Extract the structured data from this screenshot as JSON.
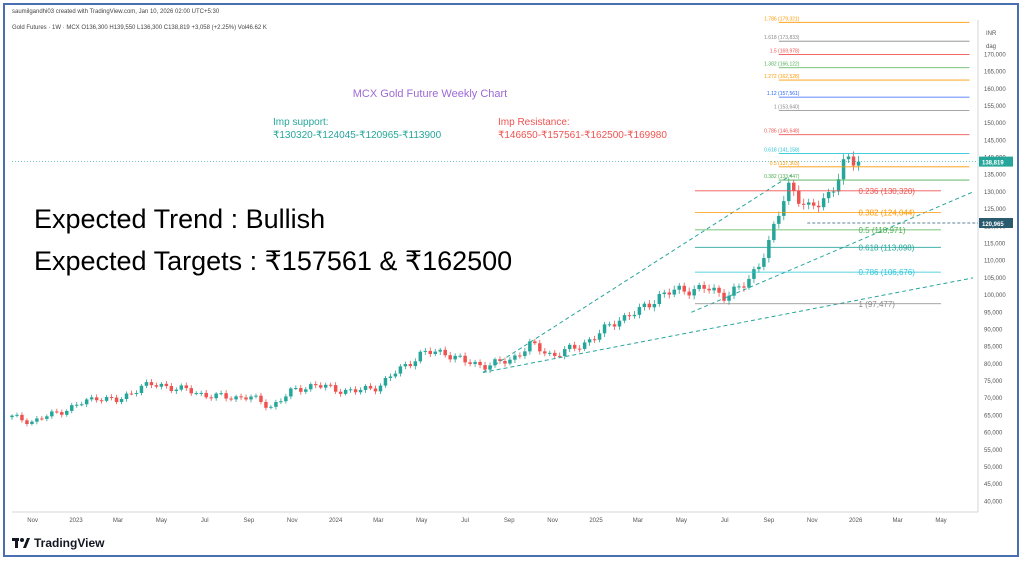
{
  "header": {
    "author_line": "saumilgandhi03 created with TradingView.com, Jan 10, 2026 02:00 UTC+5:30",
    "symbol_line": "Gold Futures · 1W · MCX  O136,300  H139,550  L136,300  C138,819  +3,058 (+2.25%)  Vol46.62 K"
  },
  "brand": {
    "name": "TradingView"
  },
  "colors": {
    "up": "#26a69a",
    "down": "#ef5350",
    "title": "#9c6ad4",
    "support": "#26a69a",
    "resistance": "#ef5350",
    "trend_text": "#000000",
    "price_tag": "#2a5a6e"
  },
  "chart_data": {
    "type": "candlestick",
    "title": "MCX Gold Future Weekly Chart",
    "currency_label": "INR",
    "scale_label": "dag",
    "ylim": [
      37500,
      180000
    ],
    "y_ticks": [
      40000,
      45000,
      50000,
      55000,
      60000,
      65000,
      70000,
      75000,
      80000,
      85000,
      90000,
      95000,
      100000,
      105000,
      110000,
      115000,
      120000,
      125000,
      130000,
      135000,
      140000,
      145000,
      150000,
      155000,
      160000,
      165000,
      170000
    ],
    "y_tick_labels": [
      "40,000",
      "45,000",
      "50,000",
      "55,000",
      "60,000",
      "65,000",
      "70,000",
      "75,000",
      "80,000",
      "85,000",
      "90,000",
      "95,000",
      "100,000",
      "105,000",
      "110,000",
      "115,000",
      "120,000",
      "125,000",
      "130,000",
      "135,000",
      "140,000",
      "145,000",
      "150,000",
      "155,000",
      "160,000",
      "165,000",
      "170,000"
    ],
    "x_start": "2022-10-03",
    "x_end": "2026-06-22",
    "x_ticks": [
      {
        "label": "Nov",
        "date": "2022-11-01"
      },
      {
        "label": "2023",
        "date": "2023-01-01"
      },
      {
        "label": "Mar",
        "date": "2023-03-01"
      },
      {
        "label": "May",
        "date": "2023-05-01"
      },
      {
        "label": "Jul",
        "date": "2023-07-01"
      },
      {
        "label": "Sep",
        "date": "2023-09-01"
      },
      {
        "label": "Nov",
        "date": "2023-11-01"
      },
      {
        "label": "2024",
        "date": "2024-01-01"
      },
      {
        "label": "Mar",
        "date": "2024-03-01"
      },
      {
        "label": "May",
        "date": "2024-05-01"
      },
      {
        "label": "Jul",
        "date": "2024-07-01"
      },
      {
        "label": "Sep",
        "date": "2024-09-01"
      },
      {
        "label": "Nov",
        "date": "2024-11-01"
      },
      {
        "label": "2025",
        "date": "2025-01-01"
      },
      {
        "label": "Mar",
        "date": "2025-03-01"
      },
      {
        "label": "May",
        "date": "2025-05-01"
      },
      {
        "label": "Jul",
        "date": "2025-07-01"
      },
      {
        "label": "Sep",
        "date": "2025-09-01"
      },
      {
        "label": "Nov",
        "date": "2025-11-01"
      },
      {
        "label": "2026",
        "date": "2026-01-01"
      },
      {
        "label": "Mar",
        "date": "2026-03-01"
      },
      {
        "label": "May",
        "date": "2026-05-01"
      }
    ],
    "weekly_close": [
      {
        "date": "2022-10-03",
        "close": 64500
      },
      {
        "date": "2022-11-01",
        "close": 63200
      },
      {
        "date": "2022-12-01",
        "close": 65500
      },
      {
        "date": "2023-01-01",
        "close": 67800
      },
      {
        "date": "2023-02-01",
        "close": 70500
      },
      {
        "date": "2023-03-01",
        "close": 69000
      },
      {
        "date": "2023-04-01",
        "close": 73500
      },
      {
        "date": "2023-05-01",
        "close": 73800
      },
      {
        "date": "2023-06-01",
        "close": 72500
      },
      {
        "date": "2023-07-01",
        "close": 71000
      },
      {
        "date": "2023-08-01",
        "close": 70200
      },
      {
        "date": "2023-09-01",
        "close": 70500
      },
      {
        "date": "2023-10-01",
        "close": 67500
      },
      {
        "date": "2023-11-01",
        "close": 72000
      },
      {
        "date": "2023-12-01",
        "close": 74000
      },
      {
        "date": "2024-01-01",
        "close": 72500
      },
      {
        "date": "2024-02-01",
        "close": 72000
      },
      {
        "date": "2024-03-01",
        "close": 73500
      },
      {
        "date": "2024-04-01",
        "close": 78500
      },
      {
        "date": "2024-05-01",
        "close": 83000
      },
      {
        "date": "2024-06-01",
        "close": 83500
      },
      {
        "date": "2024-07-01",
        "close": 80500
      },
      {
        "date": "2024-08-01",
        "close": 79500
      },
      {
        "date": "2024-09-01",
        "close": 81000
      },
      {
        "date": "2024-10-01",
        "close": 85500
      },
      {
        "date": "2024-11-01",
        "close": 82500
      },
      {
        "date": "2024-12-01",
        "close": 84500
      },
      {
        "date": "2025-01-01",
        "close": 88000
      },
      {
        "date": "2025-02-01",
        "close": 93000
      },
      {
        "date": "2025-03-01",
        "close": 95000
      },
      {
        "date": "2025-04-01",
        "close": 100000
      },
      {
        "date": "2025-05-01",
        "close": 101500
      },
      {
        "date": "2025-06-01",
        "close": 102000
      },
      {
        "date": "2025-07-01",
        "close": 100000
      },
      {
        "date": "2025-08-01",
        "close": 103000
      },
      {
        "date": "2025-09-01",
        "close": 115000
      },
      {
        "date": "2025-10-01",
        "close": 133000
      },
      {
        "date": "2025-10-24",
        "close": 124500
      },
      {
        "date": "2025-11-14",
        "close": 127000
      },
      {
        "date": "2025-12-05",
        "close": 133000
      },
      {
        "date": "2025-12-19",
        "close": 139000
      },
      {
        "date": "2026-01-09",
        "close": 138819
      }
    ],
    "fib_levels": [
      {
        "label": "0.236 (130,320)",
        "value": 130320,
        "color": "#ef5350"
      },
      {
        "label": "0.382 (124,044)",
        "value": 124044,
        "color": "#ff9800"
      },
      {
        "label": "0.5 (118,971)",
        "value": 118971,
        "color": "#4caf50"
      },
      {
        "label": "0.618 (113,898)",
        "value": 113898,
        "color": "#26a69a"
      },
      {
        "label": "0.786 (106,676)",
        "value": 106676,
        "color": "#26c6da"
      },
      {
        "label": "1 (97,477)",
        "value": 97477,
        "color": "#888888"
      }
    ],
    "fib_ext_levels": [
      {
        "label": "1.786 (179,321)",
        "value": 179321,
        "color": "#ff9800"
      },
      {
        "label": "1.618 (173,833)",
        "value": 173833,
        "color": "#888888"
      },
      {
        "label": "1.5 (169,978)",
        "value": 169978,
        "color": "#ef5350"
      },
      {
        "label": "1.382 (166,122)",
        "value": 166122,
        "color": "#4caf50"
      },
      {
        "label": "1.272 (162,528)",
        "value": 162528,
        "color": "#ff9800"
      },
      {
        "label": "1.12 (157,561)",
        "value": 157561,
        "color": "#2962ff"
      },
      {
        "label": "1 (153,640)",
        "value": 153640,
        "color": "#888888"
      },
      {
        "label": "0.786 (146,648)",
        "value": 146648,
        "color": "#ef5350"
      },
      {
        "label": "0.618 (141,158)",
        "value": 141158,
        "color": "#26c6da"
      },
      {
        "label": "0.5 (137,303)",
        "value": 137303,
        "color": "#ff9800"
      },
      {
        "label": "0.382 (133,447)",
        "value": 133447,
        "color": "#4caf50"
      }
    ],
    "price_tags": [
      {
        "label": "138,819",
        "value": 138819
      },
      {
        "label": "120,965",
        "value": 120965
      }
    ],
    "annotations": {
      "support_title": "Imp support:",
      "support_values": "₹130320-₹124045-₹120965-₹113900",
      "resistance_title": "Imp Resistance:",
      "resistance_values": "₹146650-₹157561-₹162500-₹169980",
      "trend": "Expected Trend : Bullish",
      "targets": "Expected Targets : ₹157561 & ₹162500"
    }
  }
}
